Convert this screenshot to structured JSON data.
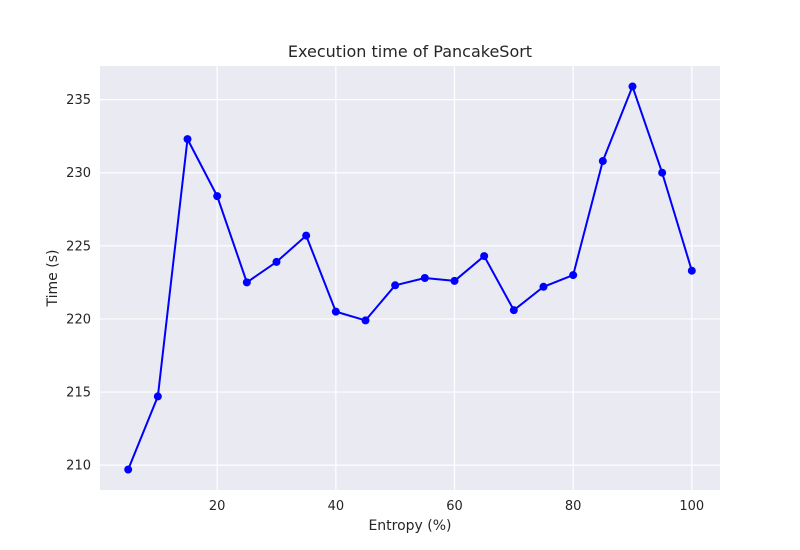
{
  "chart_data": {
    "type": "line",
    "title": "Execution time of PancakeSort",
    "xlabel": "Entropy (%)",
    "ylabel": "Time (s)",
    "xlim": [
      0.25,
      104.75
    ],
    "ylim": [
      208.3,
      237.3
    ],
    "xticks": [
      20,
      40,
      60,
      80,
      100
    ],
    "yticks": [
      210,
      215,
      220,
      225,
      230,
      235
    ],
    "grid": true,
    "legend": "none",
    "series": [
      {
        "color": "#0000ff",
        "marker": "circle",
        "x": [
          5,
          10,
          15,
          20,
          25,
          30,
          35,
          40,
          45,
          50,
          55,
          60,
          65,
          70,
          75,
          80,
          85,
          90,
          95,
          100
        ],
        "y": [
          209.7,
          214.7,
          232.3,
          228.4,
          222.5,
          223.9,
          225.7,
          220.5,
          219.9,
          222.3,
          222.8,
          222.6,
          224.3,
          220.6,
          222.2,
          223.0,
          230.8,
          235.9,
          230.0,
          223.3
        ]
      }
    ],
    "colors": {
      "plot_background": "#eaeaf2",
      "grid": "#ffffff",
      "text": "#262626"
    }
  }
}
